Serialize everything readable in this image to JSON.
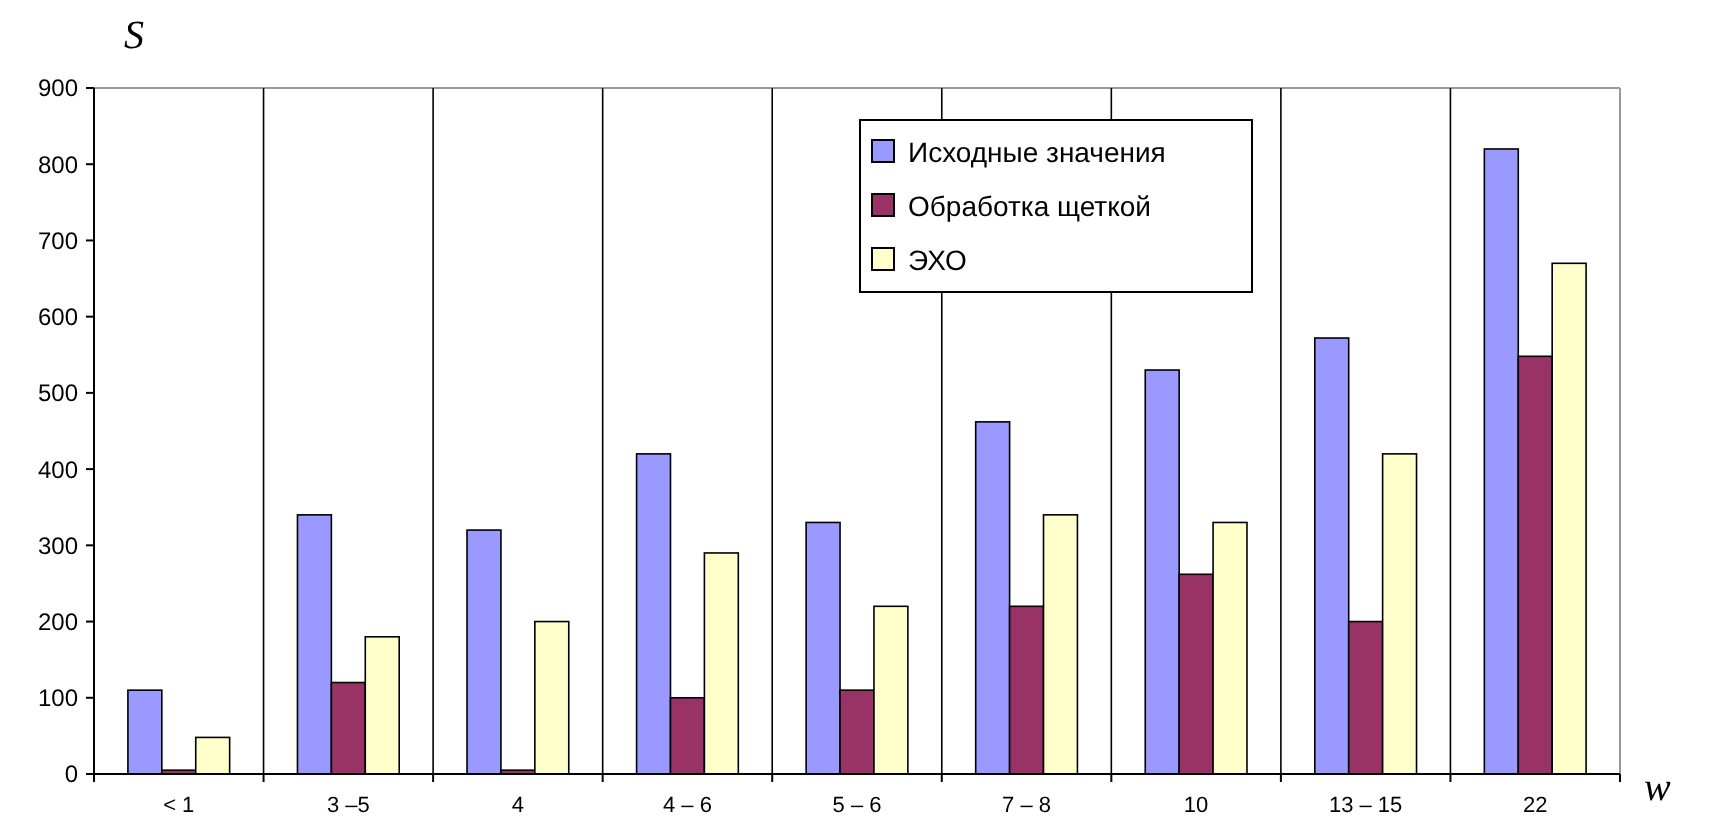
{
  "chart_data": {
    "type": "bar",
    "ylabel": "S",
    "xlabel": "w",
    "categories": [
      "< 1",
      "3 –5",
      "4",
      "4 – 6",
      "5 – 6",
      "7 – 8",
      "10",
      "13 – 15",
      "22"
    ],
    "series": [
      {
        "name": "Исходные значения",
        "color": "#9999ff",
        "values": [
          110,
          340,
          320,
          420,
          330,
          462,
          530,
          572,
          820
        ]
      },
      {
        "name": "Обработка щеткой",
        "color": "#993366",
        "values": [
          5,
          120,
          5,
          100,
          110,
          220,
          262,
          200,
          548
        ]
      },
      {
        "name": "ЭХО",
        "color": "#ffffcc",
        "values": [
          48,
          180,
          200,
          290,
          220,
          340,
          330,
          420,
          670
        ]
      }
    ],
    "ylim": [
      0,
      900
    ],
    "yticks": [
      0,
      100,
      200,
      300,
      400,
      500,
      600,
      700,
      800,
      900
    ],
    "grid": "x",
    "legend": "top"
  }
}
